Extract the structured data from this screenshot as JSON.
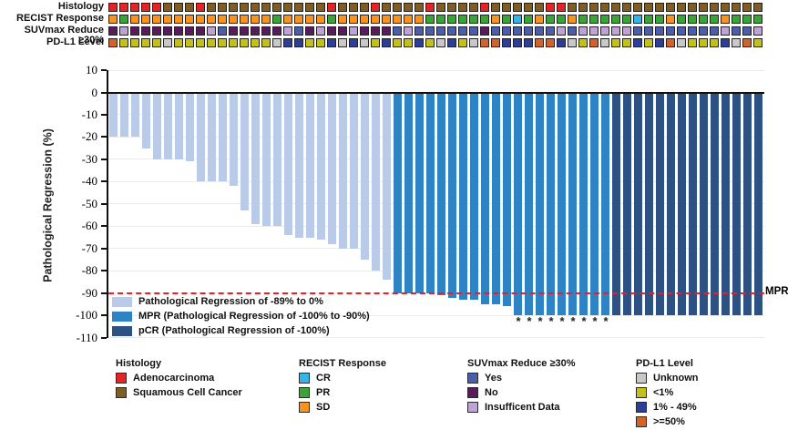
{
  "figure": {
    "ylabel": "Pathological Regression (%)",
    "mpr_label": "MPR",
    "asterisk_symbol": "*"
  },
  "tracks": {
    "rows": [
      {
        "key": "histology",
        "label": "Histology",
        "cells": [
          "A",
          "A",
          "A",
          "A",
          "A",
          "S",
          "S",
          "S",
          "A",
          "S",
          "S",
          "S",
          "S",
          "S",
          "S",
          "S",
          "S",
          "S",
          "S",
          "S",
          "A",
          "S",
          "S",
          "S",
          "A",
          "S",
          "S",
          "S",
          "S",
          "A",
          "S",
          "S",
          "S",
          "S",
          "A",
          "S",
          "S",
          "S",
          "S",
          "S",
          "A",
          "A",
          "S",
          "S",
          "S",
          "S",
          "S",
          "S",
          "S",
          "S",
          "S",
          "S",
          "S",
          "S",
          "S",
          "S",
          "S",
          "S",
          "S",
          "S"
        ]
      },
      {
        "key": "recist",
        "label": "RECIST Response",
        "cells": [
          "SD",
          "PR",
          "SD",
          "SD",
          "SD",
          "SD",
          "SD",
          "SD",
          "SD",
          "SD",
          "SD",
          "SD",
          "SD",
          "SD",
          "SD",
          "PR",
          "SD",
          "SD",
          "SD",
          "SD",
          "PR",
          "SD",
          "SD",
          "SD",
          "SD",
          "SD",
          "SD",
          "SD",
          "SD",
          "PR",
          "PR",
          "PR",
          "PR",
          "PR",
          "PR",
          "SD",
          "PR",
          "CR",
          "PR",
          "SD",
          "PR",
          "PR",
          "SD",
          "PR",
          "PR",
          "PR",
          "PR",
          "PR",
          "CR",
          "PR",
          "PR",
          "SD",
          "PR",
          "PR",
          "PR",
          "PR",
          "SD",
          "PR",
          "PR",
          "PR"
        ]
      },
      {
        "key": "suvmax",
        "label": "SUVmax Reduce ≥30%",
        "cells": [
          "no",
          "insuf",
          "no",
          "no",
          "no",
          "no",
          "no",
          "no",
          "no",
          "insuf",
          "yes",
          "no",
          "no",
          "no",
          "no",
          "no",
          "insuf",
          "yes",
          "no",
          "insuf",
          "no",
          "no",
          "insuf",
          "no",
          "no",
          "no",
          "yes",
          "insuf",
          "yes",
          "yes",
          "yes",
          "yes",
          "yes",
          "yes",
          "no",
          "yes",
          "yes",
          "yes",
          "yes",
          "yes",
          "yes",
          "insuf",
          "yes",
          "insuf",
          "insuf",
          "insuf",
          "insuf",
          "insuf",
          "yes",
          "yes",
          "yes",
          "yes",
          "yes",
          "yes",
          "yes",
          "yes",
          "insuf",
          "yes",
          "yes",
          "insuf"
        ]
      },
      {
        "key": "pdl1",
        "label": "PD-L1 Level",
        "cells": [
          "ge50",
          "lt1",
          "lt1",
          "lt1",
          "lt1",
          "unknown",
          "lt1",
          "lt1",
          "lt1",
          "lt1",
          "lt1",
          "lt1",
          "lt1",
          "lt1",
          "lt1",
          "unknown",
          "1to49",
          "1to49",
          "lt1",
          "lt1",
          "1to49",
          "unknown",
          "1to49",
          "unknown",
          "lt1",
          "1to49",
          "lt1",
          "lt1",
          "1to49",
          "lt1",
          "unknown",
          "1to49",
          "lt1",
          "unknown",
          "ge50",
          "ge50",
          "1to49",
          "1to49",
          "1to49",
          "ge50",
          "ge50",
          "1to49",
          "unknown",
          "lt1",
          "ge50",
          "unknown",
          "lt1",
          "lt1",
          "1to49",
          "lt1",
          "1to49",
          "ge50",
          "unknown",
          "lt1",
          "lt1",
          "lt1",
          "1to49",
          "unknown",
          "ge50",
          "lt1"
        ]
      }
    ]
  },
  "colors": {
    "histology": {
      "A": "#e62325",
      "S": "#7d5e24"
    },
    "recist": {
      "CR": "#35b5e9",
      "PR": "#3aa535",
      "SD": "#f7941e"
    },
    "suvmax": {
      "yes": "#4b5ea9",
      "no": "#5a1a5e",
      "insuf": "#bfa3d4"
    },
    "pdl1": {
      "unknown": "#c8c8c8",
      "lt1": "#c4c019",
      "1to49": "#2c3e97",
      "ge50": "#d2622b"
    },
    "bars": {
      "light": "#b9cbe8",
      "mpr": "#2d83c4",
      "pcr": "#2e5183"
    },
    "mpr_line": "#ee1c25"
  },
  "chart_data": {
    "type": "bar",
    "title": "",
    "xlabel": "",
    "ylabel": "Pathological Regression (%)",
    "ylim": [
      -110,
      10
    ],
    "yticks": [
      10,
      0,
      -10,
      -20,
      -30,
      -40,
      -50,
      -60,
      -70,
      -80,
      -90,
      -100,
      -110
    ],
    "grid": true,
    "reference_line": {
      "value": -90,
      "label": "MPR",
      "style": "red-dashed"
    },
    "values": [
      -20,
      -20,
      -20,
      -25,
      -30,
      -30,
      -30,
      -31,
      -40,
      -40,
      -40,
      -42,
      -53,
      -59,
      -60,
      -60,
      -64,
      -65,
      -65,
      -66,
      -68,
      -70,
      -70,
      -75,
      -80,
      -84,
      -90,
      -90,
      -90,
      -90,
      -91,
      -92,
      -93,
      -93,
      -95,
      -95,
      -96,
      -100,
      -100,
      -100,
      -100,
      -100,
      -100,
      -100,
      -100,
      -100,
      -100,
      -100,
      -100,
      -100,
      -100,
      -100,
      -100,
      -100,
      -100,
      -100,
      -100,
      -100,
      -100,
      -100
    ],
    "bar_groups": {
      "light": [
        1,
        26
      ],
      "mpr": [
        27,
        46
      ],
      "pcr": [
        47,
        60
      ]
    },
    "asterisk_bars": [
      38,
      39,
      40,
      41,
      42,
      43,
      44,
      45,
      46
    ]
  },
  "plot_legend": {
    "items": [
      {
        "key": "light",
        "label": "Pathological Regression of -89% to 0%"
      },
      {
        "key": "mpr",
        "label": "MPR (Pathological Regression of -100% to -90%)"
      },
      {
        "key": "pcr",
        "label": "pCR (Pathological Regression of -100%)"
      }
    ]
  },
  "legend_groups": [
    {
      "title": "Histology",
      "items": [
        {
          "label": "Adenocarcinoma",
          "color": "#e62325"
        },
        {
          "label": "Squamous Cell Cancer",
          "color": "#7d5e24"
        }
      ]
    },
    {
      "title": "RECIST Response",
      "items": [
        {
          "label": "CR",
          "color": "#35b5e9"
        },
        {
          "label": "PR",
          "color": "#3aa535"
        },
        {
          "label": "SD",
          "color": "#f7941e"
        }
      ]
    },
    {
      "title": "SUVmax Reduce ≥30%",
      "items": [
        {
          "label": "Yes",
          "color": "#4b5ea9"
        },
        {
          "label": "No",
          "color": "#5a1a5e"
        },
        {
          "label": "Insufficent Data",
          "color": "#bfa3d4"
        }
      ]
    },
    {
      "title": "PD-L1 Level",
      "items": [
        {
          "label": "Unknown",
          "color": "#c8c8c8"
        },
        {
          "label": "<1%",
          "color": "#c4c019"
        },
        {
          "label": "1% - 49%",
          "color": "#2c3e97"
        },
        {
          "label": ">=50%",
          "color": "#d2622b"
        }
      ]
    }
  ]
}
